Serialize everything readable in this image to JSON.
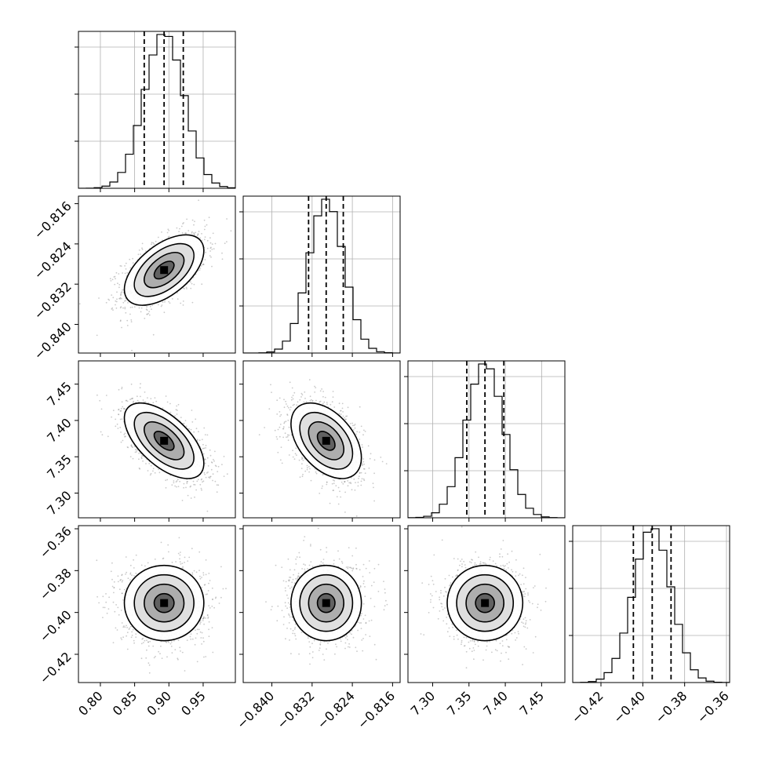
{
  "chart_data": {
    "type": "corner",
    "parameters": [
      {
        "name": "",
        "median": 0.893,
        "q16": 0.864,
        "q84": 0.921,
        "sigma": 0.029,
        "range": [
          0.768,
          0.997
        ],
        "ticks": [
          "0.80",
          "0.85",
          "0.90",
          "0.95"
        ]
      },
      {
        "name": "",
        "median": -0.8292,
        "q16": -0.8327,
        "q84": -0.8258,
        "sigma": 0.0035,
        "range": [
          -0.8457,
          -0.8145
        ],
        "ticks": [
          "−0.840",
          "−0.832",
          "−0.824",
          "−0.816"
        ]
      },
      {
        "name": "",
        "median": 7.372,
        "q16": 7.347,
        "q84": 7.398,
        "sigma": 0.026,
        "range": [
          7.266,
          7.482
        ],
        "ticks": [
          "7.30",
          "7.35",
          "7.40",
          "7.45"
        ]
      },
      {
        "name": "",
        "median": -0.3955,
        "q16": -0.4045,
        "q84": -0.3865,
        "sigma": 0.009,
        "range": [
          -0.4335,
          -0.3585
        ],
        "ticks": [
          "−0.42",
          "−0.40",
          "−0.38",
          "−0.36"
        ]
      }
    ],
    "correlations": [
      [
        1,
        0.55,
        -0.6,
        0
      ],
      [
        0.55,
        1,
        -0.45,
        0
      ],
      [
        -0.6,
        -0.45,
        1,
        0
      ],
      [
        0,
        0,
        0,
        1
      ]
    ],
    "histogram_bins": 20,
    "contour_levels": [
      "0.5σ",
      "1σ",
      "1.5σ",
      "2σ"
    ],
    "quantile_lines": [
      0.16,
      0.5,
      0.84
    ],
    "grid": true
  }
}
